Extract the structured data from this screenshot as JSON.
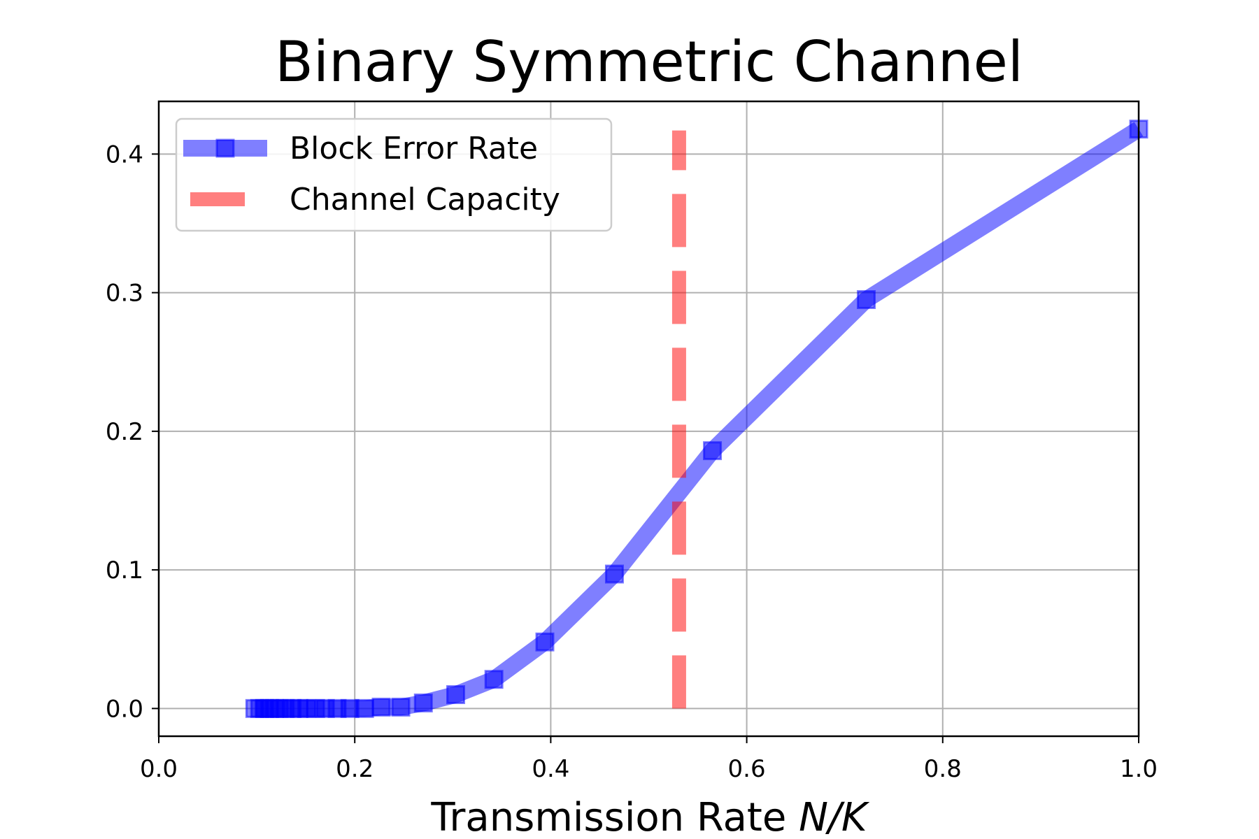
{
  "chart_data": {
    "type": "line",
    "title": "Binary Symmetric Channel",
    "xlabel_main": "Transmission Rate ",
    "xlabel_italic": "N/K",
    "ylabel": "",
    "xlim": [
      0.0,
      1.0
    ],
    "ylim": [
      -0.02,
      0.438
    ],
    "xticks": [
      "0.0",
      "0.2",
      "0.4",
      "0.6",
      "0.8",
      "1.0"
    ],
    "yticks": [
      "0.0",
      "0.1",
      "0.2",
      "0.3",
      "0.4"
    ],
    "grid": true,
    "legend_position": "upper-left",
    "series": [
      {
        "name": "Block Error Rate",
        "color": "#0000ff",
        "style": "line-with-square-markers",
        "x": [
          0.098,
          0.103,
          0.108,
          0.113,
          0.118,
          0.123,
          0.129,
          0.136,
          0.143,
          0.151,
          0.16,
          0.17,
          0.182,
          0.195,
          0.21,
          0.227,
          0.247,
          0.27,
          0.303,
          0.342,
          0.394,
          0.465,
          0.565,
          0.722,
          1.0
        ],
        "y": [
          0.0,
          0.0,
          0.0,
          0.0,
          0.0,
          0.0,
          0.0,
          0.0,
          0.0,
          0.0,
          0.0,
          0.0,
          0.0,
          0.0,
          0.0,
          0.001,
          0.001,
          0.004,
          0.01,
          0.021,
          0.048,
          0.097,
          0.186,
          0.295,
          0.418
        ]
      },
      {
        "name": "Channel Capacity",
        "color": "#ff0000",
        "style": "dashed-vertical",
        "x": [
          0.531,
          0.531
        ],
        "y": [
          0.0,
          0.417
        ]
      }
    ]
  }
}
